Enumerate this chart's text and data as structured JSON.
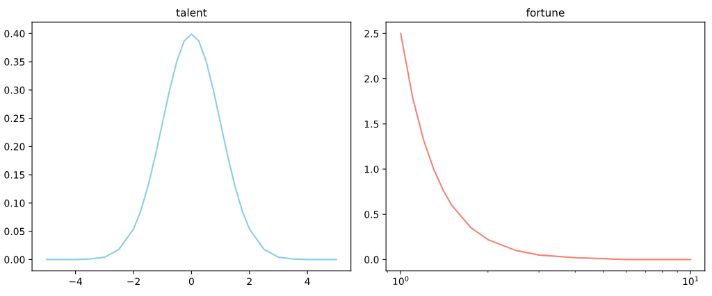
{
  "chart_data": [
    {
      "type": "line",
      "title": "talent",
      "xlim": [
        -5.5,
        5.5
      ],
      "ylim": [
        -0.02,
        0.42
      ],
      "xticks": [
        {
          "value": -4,
          "label": "−4"
        },
        {
          "value": -2,
          "label": "−2"
        },
        0,
        2,
        4
      ],
      "yticks": [
        {
          "value": 0,
          "label": "0.00"
        },
        {
          "value": 0.05,
          "label": "0.05"
        },
        {
          "value": 0.1,
          "label": "0.10"
        },
        {
          "value": 0.15,
          "label": "0.15"
        },
        {
          "value": 0.2,
          "label": "0.20"
        },
        {
          "value": 0.25,
          "label": "0.25"
        },
        {
          "value": 0.3,
          "label": "0.30"
        },
        {
          "value": 0.35,
          "label": "0.35"
        },
        {
          "value": 0.4,
          "label": "0.40"
        }
      ],
      "grid": false,
      "legend": false,
      "series": [
        {
          "color": "#87ceeb",
          "x": [
            -5,
            -4.5,
            -4,
            -3.5,
            -3,
            -2.5,
            -2,
            -1.75,
            -1.5,
            -1.25,
            -1,
            -0.75,
            -0.5,
            -0.25,
            0,
            0.25,
            0.5,
            0.75,
            1,
            1.25,
            1.5,
            1.75,
            2,
            2.5,
            3,
            3.5,
            4,
            4.5,
            5
          ],
          "values": [
            0.0,
            0.0,
            0.0,
            0.001,
            0.004,
            0.018,
            0.054,
            0.086,
            0.13,
            0.183,
            0.242,
            0.301,
            0.352,
            0.387,
            0.399,
            0.387,
            0.352,
            0.301,
            0.242,
            0.183,
            0.13,
            0.086,
            0.054,
            0.018,
            0.004,
            0.001,
            0.0,
            0.0,
            0.0
          ]
        }
      ]
    },
    {
      "type": "line",
      "title": "fortune",
      "log": "x",
      "xlim": [
        0.89,
        11.2
      ],
      "ylim": [
        -0.125,
        2.625
      ],
      "xticks": [
        {
          "value": 1,
          "label": "10$^{0}$"
        },
        {
          "value": 10,
          "label": "10$^{1}$"
        }
      ],
      "yticks": [
        {
          "value": 0,
          "label": "0.0"
        },
        0.5,
        {
          "value": 1,
          "label": "1.0"
        },
        1.5,
        {
          "value": 2,
          "label": "2.0"
        },
        2.5
      ],
      "grid": false,
      "legend": false,
      "series": [
        {
          "color": "#fa8072",
          "x": [
            1,
            1.1,
            1.2,
            1.3,
            1.4,
            1.5,
            1.75,
            2,
            2.5,
            3,
            4,
            5,
            6,
            8,
            10
          ],
          "values": [
            2.5,
            1.79,
            1.32,
            1.0,
            0.77,
            0.6,
            0.35,
            0.22,
            0.1,
            0.05,
            0.02,
            0.01,
            0.0,
            0.0,
            0.0
          ]
        }
      ]
    }
  ]
}
